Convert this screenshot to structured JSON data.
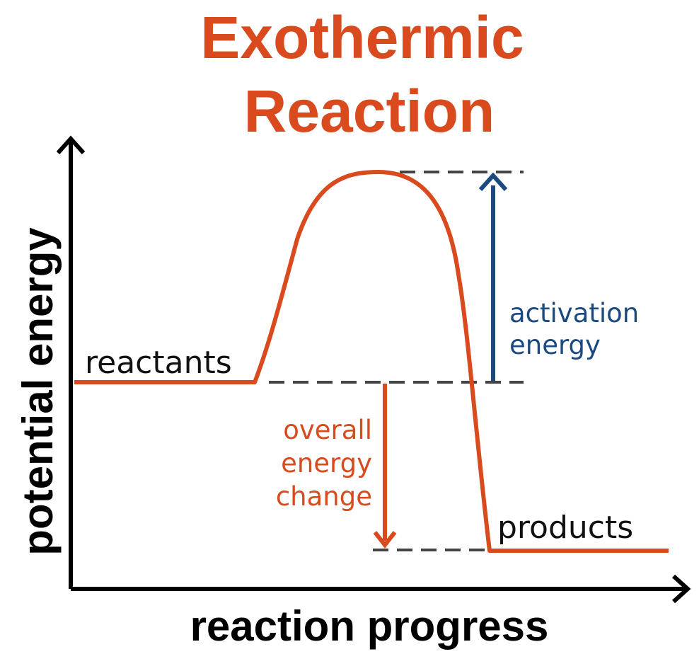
{
  "title": {
    "line1": "Exothermic",
    "line2": "Reaction"
  },
  "axes": {
    "x_label": "reaction progress",
    "y_label": "potential energy"
  },
  "curve_labels": {
    "start": "reactants",
    "end": "products"
  },
  "activation_energy": {
    "line1": "activation",
    "line2": "energy"
  },
  "overall_change": {
    "line1": "overall",
    "line2": "energy",
    "line3": "change"
  },
  "colors": {
    "accent": "#d94a1e",
    "blue": "#1b4a80",
    "dash": "#444444",
    "axis": "#000000",
    "text": "#111111"
  }
}
